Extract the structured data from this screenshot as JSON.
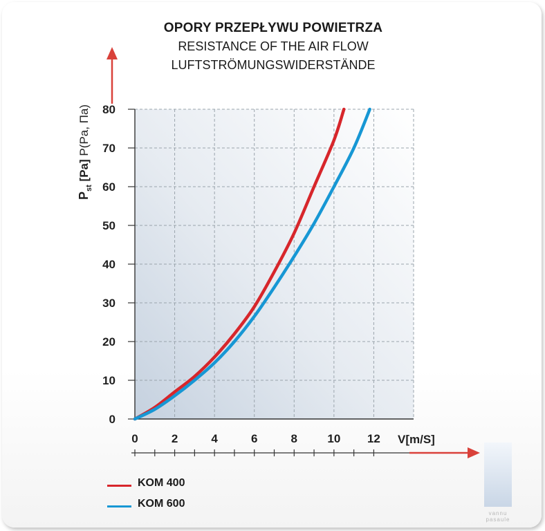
{
  "title": {
    "line1": "OPORY PRZEPŁYWU POWIETRZA",
    "line2": "RESISTANCE OF THE AIR FLOW",
    "line3": "LUFTSTRÖMUNGSWIDERSTÄNDE"
  },
  "watermark": {
    "line1": "vannu",
    "line2": "pasaule"
  },
  "colors": {
    "kom400": "#d7262b",
    "kom600": "#1797d4",
    "arrow": "#d9413a",
    "grid": "#9aa4ac"
  },
  "chart_data": {
    "type": "line",
    "title": "OPORY PRZEPŁYWU POWIETRZA / RESISTANCE OF THE AIR FLOW / LUFTSTRÖMUNGSWIDERSTÄNDE",
    "xlabel": "V[m/S]",
    "ylabel": {
      "main": "P",
      "sub": "st",
      "rest": " [Pa]",
      "extra": " P(Pa, Па)"
    },
    "xlim": [
      0,
      14
    ],
    "ylim": [
      0,
      80
    ],
    "x_ticks": [
      "0",
      "2",
      "4",
      "6",
      "8",
      "10",
      "12"
    ],
    "y_ticks": [
      "0",
      "10",
      "20",
      "30",
      "40",
      "50",
      "60",
      "70",
      "80"
    ],
    "grid": true,
    "legend_position": "bottom-left",
    "series": [
      {
        "name": "KOM 400",
        "color": "#d7262b",
        "x": [
          0,
          1,
          2,
          3,
          4,
          5,
          6,
          7,
          8,
          9,
          10,
          10.5
        ],
        "y": [
          0,
          3,
          7,
          11,
          16,
          22,
          29,
          38,
          48,
          60,
          72,
          80
        ]
      },
      {
        "name": "KOM 600",
        "color": "#1797d4",
        "x": [
          0,
          1,
          2,
          3,
          4,
          5,
          6,
          7,
          8,
          9,
          10,
          11,
          11.8
        ],
        "y": [
          0,
          2.5,
          6,
          10,
          14.5,
          20,
          26.5,
          34,
          42,
          50.5,
          60,
          70,
          80
        ]
      }
    ]
  }
}
